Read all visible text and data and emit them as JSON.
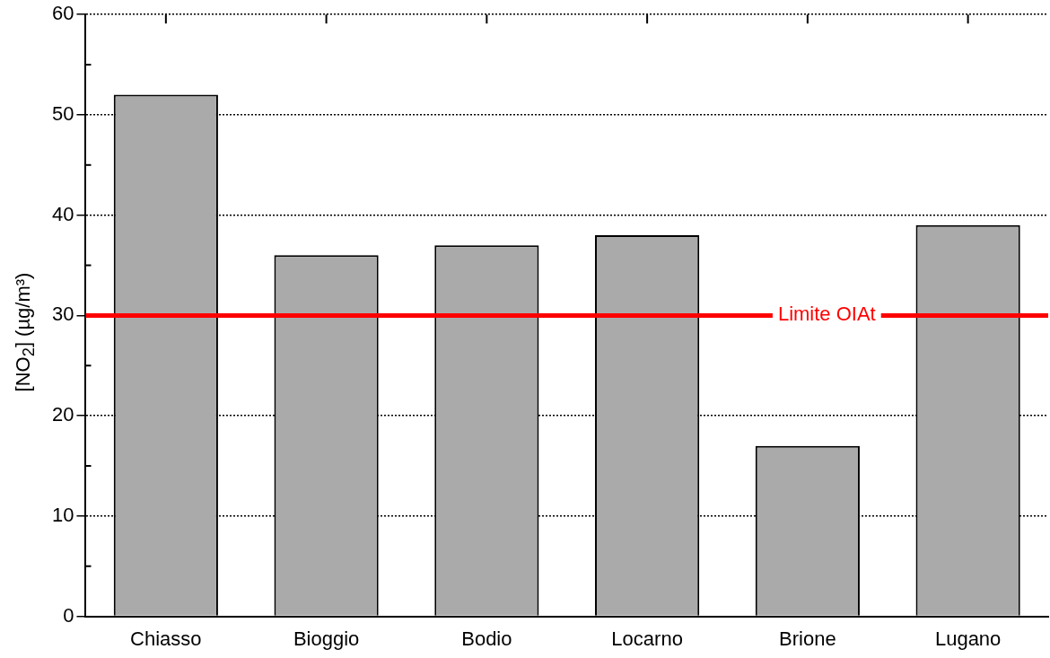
{
  "chart_data": {
    "type": "bar",
    "ylabel": "[NO$_{2}$] (µg/m³)",
    "categories": [
      "Chiasso",
      "Bioggio",
      "Bodio",
      "Locarno",
      "Brione",
      "Lugano"
    ],
    "values": [
      52,
      36,
      37,
      38,
      17,
      39
    ],
    "color": "#aaaaaa",
    "ylim": [
      0,
      60
    ],
    "yticks": [
      0,
      10,
      20,
      30,
      40,
      50,
      60
    ],
    "grid": "y",
    "ref_lines": [
      {
        "axis": "y",
        "value": 30,
        "label": "Limite OIAt",
        "color": "#ff0000"
      }
    ]
  }
}
